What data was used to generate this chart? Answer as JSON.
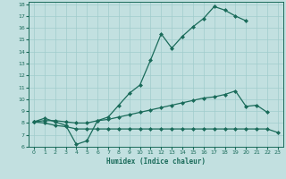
{
  "xlabel": "Humidex (Indice chaleur)",
  "xlim": [
    -0.5,
    23.5
  ],
  "ylim": [
    6,
    18.2
  ],
  "yticks": [
    6,
    7,
    8,
    9,
    10,
    11,
    12,
    13,
    14,
    15,
    16,
    17,
    18
  ],
  "xticks": [
    0,
    1,
    2,
    3,
    4,
    5,
    6,
    7,
    8,
    9,
    10,
    11,
    12,
    13,
    14,
    15,
    16,
    17,
    18,
    19,
    20,
    21,
    22,
    23
  ],
  "bg_color": "#c2e0e0",
  "line_color": "#1a6b5a",
  "grid_color": "#a0cccc",
  "line1_y": [
    8.1,
    8.4,
    8.1,
    7.8,
    6.2,
    6.5,
    8.2,
    8.5,
    9.5,
    10.5,
    11.2,
    13.3,
    15.5,
    14.3,
    15.3,
    16.1,
    16.8,
    17.8,
    17.5,
    17.0,
    16.6,
    null,
    null,
    null
  ],
  "line2_y": [
    8.1,
    8.2,
    8.2,
    8.1,
    8.0,
    8.0,
    8.2,
    8.3,
    8.5,
    8.7,
    8.9,
    9.1,
    9.3,
    9.5,
    9.7,
    9.9,
    10.1,
    10.2,
    10.4,
    10.7,
    9.4,
    9.5,
    8.9,
    null
  ],
  "line3_y": [
    8.1,
    8.0,
    7.8,
    7.7,
    7.5,
    7.5,
    7.5,
    7.5,
    7.5,
    7.5,
    7.5,
    7.5,
    7.5,
    7.5,
    7.5,
    7.5,
    7.5,
    7.5,
    7.5,
    7.5,
    7.5,
    7.5,
    7.5,
    7.2
  ]
}
